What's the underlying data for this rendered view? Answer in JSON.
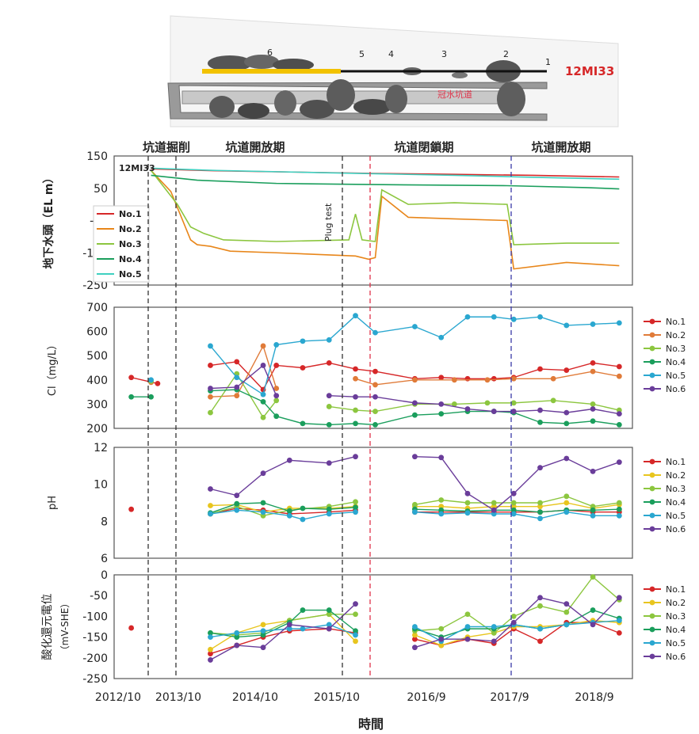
{
  "diagram": {
    "borehole_name": "12MI33",
    "section_labels": [
      "1",
      "2",
      "3",
      "4",
      "5",
      "6"
    ],
    "drift_label": "冠水坑道"
  },
  "periods": {
    "labels": [
      "坑道掘削",
      "坑道開放期",
      "坑道閉鎖期",
      "坑道開放期"
    ]
  },
  "xaxis": {
    "label": "時間",
    "ticks": [
      "2012/10",
      "2013/10",
      "2014/10",
      "2015/10",
      "2016/9",
      "2017/9",
      "2018/9"
    ]
  },
  "legend_items": [
    "No.1",
    "No.2",
    "No.3",
    "No.4",
    "No.5",
    "No.6"
  ],
  "colors": {
    "no1": "#d62728",
    "no2_head": "#e8861a",
    "no2_cl": "#e07b39",
    "no2_ph": "#e8c51e",
    "no3": "#8cc63f",
    "no4": "#1a9e5c",
    "no5": "#2aa7d0",
    "no5_head": "#3fd0c0",
    "no6": "#6a3d9a",
    "event_black": "#333333",
    "event_red": "#e0334a",
    "event_blue": "#3a3aa8"
  },
  "chart_data": [
    {
      "type": "line",
      "title": "地下水頭",
      "inset_label": "12MI33",
      "ylabel": "地下水頭（EL m）",
      "ylim": [
        -250,
        150
      ],
      "yticks": [
        150,
        50,
        -50,
        -150,
        -250
      ],
      "annotation": "Plug test",
      "series": [
        {
          "name": "No.1",
          "x": [
            "2013/3",
            "2014/1",
            "2015/1",
            "2016/1",
            "2017/1",
            "2018/1",
            "2019/2"
          ],
          "values": [
            110,
            104,
            100,
            96,
            93,
            90,
            85
          ]
        },
        {
          "name": "No.2",
          "x": [
            "2013/3",
            "2013/6",
            "2013/9",
            "2013/10",
            "2013/12",
            "2014/3",
            "2014/10",
            "2015/10",
            "2015/12",
            "2016/1",
            "2016/2",
            "2016/6",
            "2017/1",
            "2017/9",
            "2017/10",
            "2018/6",
            "2019/2"
          ],
          "values": [
            105,
            40,
            -110,
            -125,
            -130,
            -145,
            -150,
            -160,
            -170,
            -165,
            25,
            -40,
            -45,
            -50,
            -200,
            -180,
            -190
          ]
        },
        {
          "name": "No.3",
          "x": [
            "2013/3",
            "2013/7",
            "2013/9",
            "2013/11",
            "2014/2",
            "2014/10",
            "2015/9",
            "2015/10",
            "2015/11",
            "2016/1",
            "2016/2",
            "2016/6",
            "2017/1",
            "2017/9",
            "2017/10",
            "2018/6",
            "2019/2"
          ],
          "values": [
            105,
            0,
            -70,
            -90,
            -110,
            -115,
            -110,
            -30,
            -110,
            -115,
            45,
            0,
            5,
            0,
            -125,
            -120,
            -120
          ]
        },
        {
          "name": "No.4",
          "x": [
            "2013/3",
            "2013/10",
            "2014/10",
            "2015/10",
            "2016/9",
            "2017/9",
            "2018/9",
            "2019/2"
          ],
          "values": [
            90,
            75,
            65,
            62,
            60,
            58,
            52,
            48
          ]
        },
        {
          "name": "No.5",
          "x": [
            "2013/3",
            "2014/1",
            "2015/1",
            "2016/1",
            "2017/1",
            "2018/1",
            "2019/2"
          ],
          "values": [
            112,
            105,
            100,
            95,
            90,
            84,
            78
          ]
        }
      ]
    },
    {
      "type": "line",
      "ylabel": "Cl（mg/L）",
      "ylim": [
        200,
        700
      ],
      "yticks": [
        700,
        600,
        500,
        400,
        300,
        200
      ],
      "series": [
        {
          "name": "No.1",
          "x": [
            "2012/12",
            "2013/4",
            "2013/12",
            "2014/4",
            "2014/8",
            "2014/10",
            "2015/2",
            "2015/6",
            "2015/10",
            "2016/1",
            "2016/7",
            "2016/11",
            "2017/3",
            "2017/7",
            "2017/10",
            "2018/2",
            "2018/6",
            "2018/10",
            "2019/2"
          ],
          "values": [
            410,
            385,
            460,
            475,
            360,
            460,
            450,
            470,
            445,
            435,
            405,
            410,
            405,
            405,
            410,
            445,
            440,
            470,
            455
          ]
        },
        {
          "name": "No.2",
          "x": [
            "2013/3",
            "2013/12",
            "2014/4",
            "2014/8",
            "2014/10",
            "2015/10",
            "2016/1",
            "2016/7",
            "2017/1",
            "2017/6",
            "2017/10",
            "2018/4",
            "2018/10",
            "2019/2"
          ],
          "values": [
            390,
            330,
            335,
            540,
            365,
            405,
            380,
            400,
            400,
            400,
            405,
            405,
            435,
            415
          ]
        },
        {
          "name": "No.3",
          "x": [
            "2013/3",
            "2013/12",
            "2014/4",
            "2014/8",
            "2014/10",
            "2015/6",
            "2015/10",
            "2016/1",
            "2016/7",
            "2017/1",
            "2017/6",
            "2017/10",
            "2018/4",
            "2018/10",
            "2019/2"
          ],
          "values": [
            395,
            265,
            425,
            245,
            315,
            290,
            275,
            270,
            300,
            300,
            305,
            305,
            315,
            300,
            275
          ]
        },
        {
          "name": "No.4",
          "x": [
            "2012/12",
            "2013/3",
            "2013/12",
            "2014/4",
            "2014/8",
            "2014/10",
            "2015/2",
            "2015/6",
            "2015/10",
            "2016/1",
            "2016/7",
            "2016/11",
            "2017/3",
            "2017/7",
            "2017/10",
            "2018/2",
            "2018/6",
            "2018/10",
            "2019/2"
          ],
          "values": [
            330,
            330,
            355,
            360,
            310,
            250,
            220,
            215,
            220,
            215,
            255,
            260,
            270,
            270,
            265,
            225,
            220,
            230,
            215
          ]
        },
        {
          "name": "No.5",
          "x": [
            "2013/3",
            "2013/12",
            "2014/4",
            "2014/8",
            "2014/10",
            "2015/2",
            "2015/6",
            "2015/10",
            "2016/1",
            "2016/7",
            "2016/11",
            "2017/3",
            "2017/7",
            "2017/10",
            "2018/2",
            "2018/6",
            "2018/10",
            "2019/2"
          ],
          "values": [
            400,
            540,
            410,
            340,
            545,
            560,
            565,
            665,
            595,
            620,
            575,
            660,
            660,
            650,
            660,
            625,
            630,
            635
          ]
        },
        {
          "name": "No.6",
          "x": [
            "2013/12",
            "2014/4",
            "2014/8",
            "2014/10",
            "2015/6",
            "2015/10",
            "2016/1",
            "2016/7",
            "2016/11",
            "2017/3",
            "2017/7",
            "2017/10",
            "2018/2",
            "2018/6",
            "2018/10",
            "2019/2"
          ],
          "values": [
            365,
            370,
            460,
            335,
            335,
            330,
            330,
            305,
            300,
            280,
            270,
            270,
            275,
            265,
            280,
            260
          ]
        }
      ]
    },
    {
      "type": "line",
      "ylabel": "pH",
      "ylim": [
        6,
        12
      ],
      "yticks": [
        12,
        10,
        8,
        6
      ],
      "series": [
        {
          "name": "No.1",
          "x": [
            "2012/12",
            "2013/12",
            "2014/4",
            "2014/8",
            "2014/12",
            "2015/6",
            "2015/10",
            "2016/7",
            "2016/11",
            "2017/3",
            "2017/7",
            "2017/10",
            "2018/2",
            "2018/6",
            "2018/10",
            "2019/2"
          ],
          "values": [
            8.65,
            8.4,
            8.7,
            8.6,
            8.4,
            8.5,
            8.6,
            8.5,
            8.5,
            8.5,
            8.5,
            8.5,
            8.5,
            8.6,
            8.5,
            8.5
          ]
        },
        {
          "name": "No.2",
          "x": [
            "2013/12",
            "2014/4",
            "2014/8",
            "2014/12",
            "2015/6",
            "2015/10",
            "2016/7",
            "2016/11",
            "2017/3",
            "2017/7",
            "2017/10",
            "2018/2",
            "2018/6",
            "2018/10",
            "2019/2"
          ],
          "values": [
            8.85,
            8.9,
            8.5,
            8.7,
            8.7,
            8.8,
            8.8,
            8.8,
            8.7,
            8.8,
            8.8,
            8.8,
            9.0,
            8.7,
            8.9
          ]
        },
        {
          "name": "No.3",
          "x": [
            "2013/12",
            "2014/4",
            "2014/8",
            "2014/12",
            "2015/6",
            "2015/10",
            "2016/7",
            "2016/11",
            "2017/3",
            "2017/7",
            "2017/10",
            "2018/2",
            "2018/6",
            "2018/10",
            "2019/2"
          ],
          "values": [
            8.4,
            8.8,
            8.3,
            8.6,
            8.8,
            9.05,
            8.9,
            9.15,
            9.0,
            9.0,
            9.0,
            9.0,
            9.35,
            8.8,
            9.0
          ]
        },
        {
          "name": "No.4",
          "x": [
            "2013/12",
            "2014/4",
            "2014/8",
            "2014/12",
            "2015/2",
            "2015/6",
            "2015/10",
            "2016/7",
            "2016/11",
            "2017/3",
            "2017/7",
            "2017/10",
            "2018/2",
            "2018/6",
            "2018/10",
            "2019/2"
          ],
          "values": [
            8.45,
            8.95,
            9.0,
            8.55,
            8.7,
            8.65,
            8.75,
            8.65,
            8.6,
            8.55,
            8.6,
            8.6,
            8.5,
            8.6,
            8.6,
            8.65
          ]
        },
        {
          "name": "No.5",
          "x": [
            "2013/12",
            "2014/4",
            "2014/8",
            "2014/12",
            "2015/2",
            "2015/6",
            "2015/10",
            "2016/7",
            "2016/11",
            "2017/3",
            "2017/7",
            "2017/10",
            "2018/2",
            "2018/6",
            "2018/10",
            "2019/2"
          ],
          "values": [
            8.4,
            8.6,
            8.5,
            8.3,
            8.1,
            8.4,
            8.5,
            8.5,
            8.4,
            8.45,
            8.4,
            8.4,
            8.15,
            8.5,
            8.3,
            8.3
          ]
        },
        {
          "name": "No.6",
          "x": [
            "2013/12",
            "2014/4",
            "2014/8",
            "2014/12",
            "2015/6",
            "2015/10",
            "2016/7",
            "2016/11",
            "2017/3",
            "2017/7",
            "2017/10",
            "2018/2",
            "2018/6",
            "2018/10",
            "2019/2"
          ],
          "values": [
            9.75,
            9.4,
            10.6,
            11.3,
            11.15,
            11.5,
            11.5,
            11.45,
            9.5,
            8.6,
            9.5,
            10.9,
            11.4,
            10.7,
            11.2
          ]
        }
      ]
    },
    {
      "type": "line",
      "ylabel": "酸化還元電位（mV-SHE）",
      "ylim": [
        -250,
        0
      ],
      "yticks": [
        0,
        -50,
        -100,
        -150,
        -200,
        -250
      ],
      "series": [
        {
          "name": "No.1",
          "x": [
            "2012/12",
            "2013/12",
            "2014/4",
            "2014/8",
            "2014/12",
            "2015/6",
            "2015/10",
            "2016/7",
            "2016/11",
            "2017/3",
            "2017/7",
            "2017/10",
            "2018/2",
            "2018/6",
            "2018/10",
            "2019/2"
          ],
          "values": [
            -128,
            -190,
            -170,
            -150,
            -135,
            -130,
            -140,
            -155,
            -170,
            -155,
            -165,
            -130,
            -160,
            -115,
            -115,
            -140
          ]
        },
        {
          "name": "No.2",
          "x": [
            "2013/12",
            "2014/4",
            "2014/8",
            "2014/12",
            "2015/6",
            "2015/10",
            "2016/7",
            "2016/11",
            "2017/3",
            "2017/7",
            "2017/10",
            "2018/2",
            "2018/6",
            "2018/10",
            "2019/2"
          ],
          "values": [
            -180,
            -140,
            -120,
            -110,
            -95,
            -160,
            -145,
            -170,
            -150,
            -140,
            -125,
            -125,
            -120,
            -110,
            -115
          ]
        },
        {
          "name": "No.3",
          "x": [
            "2013/12",
            "2014/4",
            "2014/8",
            "2014/12",
            "2015/6",
            "2015/10",
            "2016/7",
            "2016/11",
            "2017/3",
            "2017/7",
            "2017/10",
            "2018/2",
            "2018/6",
            "2018/10",
            "2019/2"
          ],
          "values": [
            -140,
            -145,
            -140,
            -110,
            -95,
            -95,
            -135,
            -130,
            -95,
            -140,
            -100,
            -75,
            -90,
            -5,
            -60
          ]
        },
        {
          "name": "No.4",
          "x": [
            "2013/12",
            "2014/4",
            "2014/8",
            "2014/12",
            "2015/2",
            "2015/6",
            "2015/10",
            "2016/7",
            "2016/11",
            "2017/3",
            "2017/7",
            "2017/10",
            "2018/2",
            "2018/6",
            "2018/10",
            "2019/2"
          ],
          "values": [
            -140,
            -150,
            -145,
            -115,
            -85,
            -85,
            -135,
            -130,
            -150,
            -130,
            -130,
            -120,
            -130,
            -120,
            -85,
            -105
          ]
        },
        {
          "name": "No.5",
          "x": [
            "2013/12",
            "2014/4",
            "2014/8",
            "2014/12",
            "2015/2",
            "2015/6",
            "2015/10",
            "2016/7",
            "2016/11",
            "2017/3",
            "2017/7",
            "2017/10",
            "2018/2",
            "2018/6",
            "2018/10",
            "2019/2"
          ],
          "values": [
            -150,
            -140,
            -135,
            -130,
            -130,
            -120,
            -145,
            -125,
            -160,
            -125,
            -125,
            -120,
            -130,
            -120,
            -115,
            -110
          ]
        },
        {
          "name": "No.6",
          "x": [
            "2013/12",
            "2014/4",
            "2014/8",
            "2014/12",
            "2015/6",
            "2015/10",
            "2016/7",
            "2016/11",
            "2017/3",
            "2017/7",
            "2017/10",
            "2018/2",
            "2018/6",
            "2018/10",
            "2019/2"
          ],
          "values": [
            -205,
            -170,
            -175,
            -120,
            -130,
            -70,
            -175,
            -155,
            -155,
            -160,
            -115,
            -55,
            -70,
            -120,
            -55
          ]
        }
      ]
    }
  ]
}
